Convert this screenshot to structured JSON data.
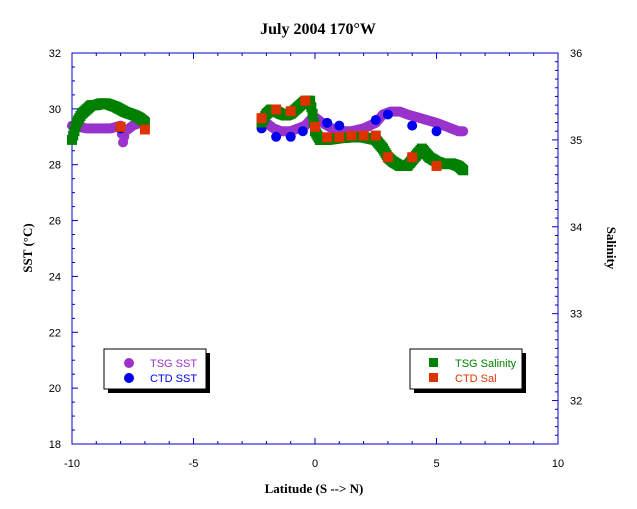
{
  "chart_data": {
    "type": "scatter",
    "title": "July 2004 170°W",
    "xlabel": "Latitude (S --> N)",
    "ylabel_left": "SST (°C)",
    "ylabel_right": "Salinity",
    "xlim": [
      -10,
      10
    ],
    "ylim_left": [
      18,
      32
    ],
    "ylim_right": [
      31.5,
      36
    ],
    "x_ticks": [
      "-10",
      "-5",
      "0",
      "5",
      "10"
    ],
    "y_ticks_left": [
      "18",
      "20",
      "22",
      "24",
      "26",
      "28",
      "30",
      "32"
    ],
    "y_ticks_right": [
      "32",
      "33",
      "34",
      "35",
      "36"
    ],
    "grid": false,
    "legends": {
      "left": [
        "TSG SST",
        "CTD SST"
      ],
      "right": [
        "TSG Salinity",
        "CTD Sal"
      ]
    },
    "series": [
      {
        "name": "TSG SST",
        "axis": "left",
        "marker": "circle",
        "color": "#9933cc",
        "points": [
          [
            -10.0,
            29.4
          ],
          [
            -9.7,
            29.35
          ],
          [
            -9.4,
            29.3
          ],
          [
            -9.0,
            29.3
          ],
          [
            -8.7,
            29.3
          ],
          [
            -8.4,
            29.3
          ],
          [
            -8.2,
            29.35
          ],
          [
            -8.0,
            29.4
          ],
          [
            -7.9,
            28.8
          ],
          [
            -7.8,
            29.2
          ],
          [
            -7.5,
            29.4
          ],
          [
            -7.2,
            29.5
          ],
          [
            -7.0,
            29.6
          ],
          [
            -2.2,
            29.6
          ],
          [
            -2.0,
            29.5
          ],
          [
            -1.7,
            29.3
          ],
          [
            -1.4,
            29.2
          ],
          [
            -1.0,
            29.2
          ],
          [
            -0.7,
            29.3
          ],
          [
            -0.4,
            29.4
          ],
          [
            -0.2,
            29.6
          ],
          [
            0.0,
            29.7
          ],
          [
            0.3,
            29.5
          ],
          [
            0.7,
            29.3
          ],
          [
            1.0,
            29.2
          ],
          [
            1.5,
            29.2
          ],
          [
            2.0,
            29.3
          ],
          [
            2.5,
            29.5
          ],
          [
            2.8,
            29.8
          ],
          [
            3.1,
            29.9
          ],
          [
            3.5,
            29.9
          ],
          [
            3.8,
            29.8
          ],
          [
            4.2,
            29.7
          ],
          [
            4.6,
            29.6
          ],
          [
            5.0,
            29.5
          ],
          [
            5.3,
            29.4
          ],
          [
            5.6,
            29.3
          ],
          [
            5.9,
            29.2
          ],
          [
            6.1,
            29.2
          ]
        ]
      },
      {
        "name": "CTD SST",
        "axis": "left",
        "marker": "circle",
        "color": "#0000ee",
        "points": [
          [
            -8.0,
            29.3
          ],
          [
            -7.0,
            29.6
          ],
          [
            -2.2,
            29.3
          ],
          [
            -1.6,
            29.0
          ],
          [
            -1.0,
            29.0
          ],
          [
            -0.5,
            29.2
          ],
          [
            0.0,
            29.4
          ],
          [
            0.5,
            29.5
          ],
          [
            1.0,
            29.4
          ],
          [
            2.5,
            29.6
          ],
          [
            3.0,
            29.8
          ],
          [
            4.0,
            29.4
          ],
          [
            5.0,
            29.2
          ]
        ]
      },
      {
        "name": "TSG Salinity",
        "axis": "right",
        "marker": "square",
        "color": "#008000",
        "points": [
          [
            -10.0,
            35.0
          ],
          [
            -9.8,
            35.2
          ],
          [
            -9.6,
            35.3
          ],
          [
            -9.4,
            35.35
          ],
          [
            -9.2,
            35.4
          ],
          [
            -9.0,
            35.4
          ],
          [
            -8.8,
            35.42
          ],
          [
            -8.6,
            35.42
          ],
          [
            -8.4,
            35.4
          ],
          [
            -8.2,
            35.38
          ],
          [
            -8.0,
            35.35
          ],
          [
            -7.8,
            35.32
          ],
          [
            -7.6,
            35.3
          ],
          [
            -7.4,
            35.28
          ],
          [
            -7.2,
            35.25
          ],
          [
            -7.0,
            35.2
          ],
          [
            -2.2,
            35.2
          ],
          [
            -2.0,
            35.3
          ],
          [
            -1.8,
            35.35
          ],
          [
            -1.6,
            35.33
          ],
          [
            -1.4,
            35.3
          ],
          [
            -1.2,
            35.28
          ],
          [
            -1.0,
            35.3
          ],
          [
            -0.8,
            35.35
          ],
          [
            -0.6,
            35.4
          ],
          [
            -0.4,
            35.45
          ],
          [
            -0.2,
            35.45
          ],
          [
            -0.1,
            35.3
          ],
          [
            0.0,
            35.1
          ],
          [
            0.2,
            35.0
          ],
          [
            0.5,
            35.0
          ],
          [
            1.0,
            35.02
          ],
          [
            1.5,
            35.03
          ],
          [
            2.0,
            35.03
          ],
          [
            2.5,
            35.0
          ],
          [
            2.8,
            34.9
          ],
          [
            3.0,
            34.8
          ],
          [
            3.2,
            34.75
          ],
          [
            3.5,
            34.7
          ],
          [
            3.8,
            34.7
          ],
          [
            4.1,
            34.8
          ],
          [
            4.4,
            34.9
          ],
          [
            4.7,
            34.8
          ],
          [
            5.0,
            34.75
          ],
          [
            5.3,
            34.72
          ],
          [
            5.6,
            34.73
          ],
          [
            5.9,
            34.7
          ],
          [
            6.1,
            34.65
          ]
        ]
      },
      {
        "name": "CTD Sal",
        "axis": "right",
        "marker": "square",
        "color": "#dd3300",
        "points": [
          [
            -8.0,
            35.15
          ],
          [
            -7.0,
            35.12
          ],
          [
            -2.2,
            35.25
          ],
          [
            -1.6,
            35.35
          ],
          [
            -1.0,
            35.33
          ],
          [
            -0.4,
            35.45
          ],
          [
            0.0,
            35.15
          ],
          [
            0.5,
            35.03
          ],
          [
            1.0,
            35.03
          ],
          [
            1.5,
            35.05
          ],
          [
            2.0,
            35.05
          ],
          [
            2.5,
            35.05
          ],
          [
            3.0,
            34.8
          ],
          [
            4.0,
            34.8
          ],
          [
            5.0,
            34.7
          ]
        ]
      }
    ]
  }
}
